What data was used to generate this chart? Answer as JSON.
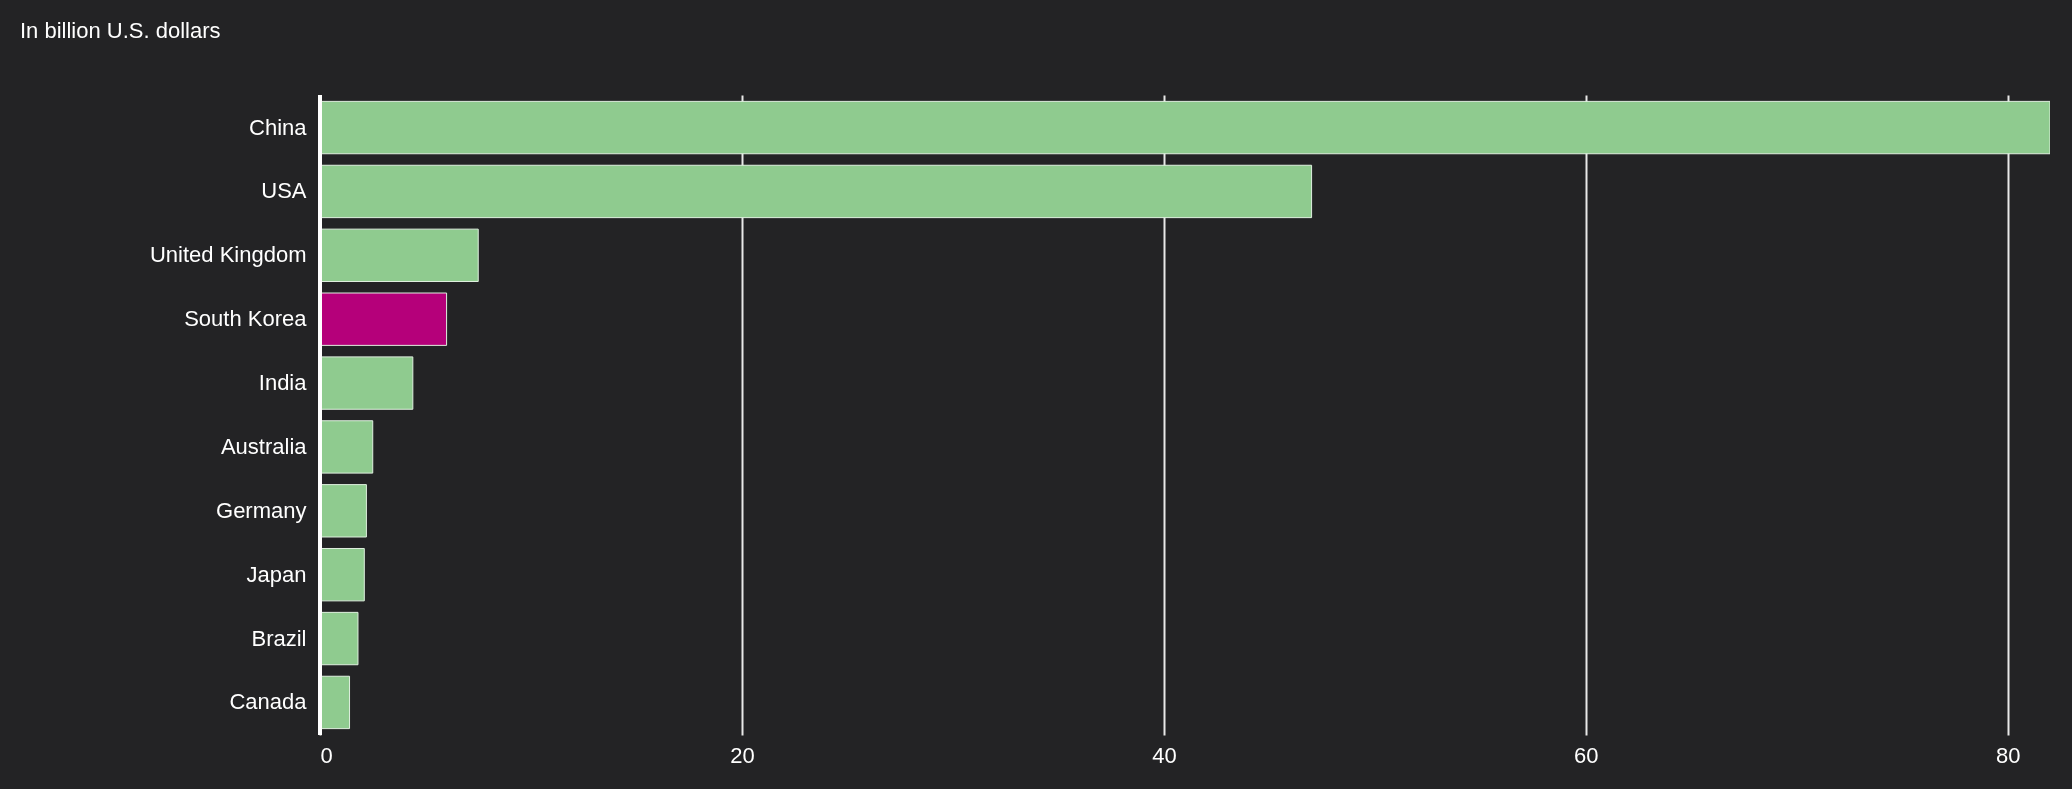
{
  "chart_data": {
    "type": "bar",
    "orientation": "horizontal",
    "title": "In billion U.S. dollars",
    "categories": [
      "China",
      "USA",
      "United Kingdom",
      "South Korea",
      "India",
      "Australia",
      "Germany",
      "Japan",
      "Brazil",
      "Canada"
    ],
    "values": [
      82,
      47,
      7.5,
      6.0,
      4.4,
      2.5,
      2.2,
      2.1,
      1.8,
      1.4
    ],
    "colors": [
      "#8fcb8f",
      "#8fcb8f",
      "#8fcb8f",
      "#b5007a",
      "#8fcb8f",
      "#8fcb8f",
      "#8fcb8f",
      "#8fcb8f",
      "#8fcb8f",
      "#8fcb8f"
    ],
    "xlim": [
      0,
      82
    ],
    "xticks": [
      0,
      20,
      40,
      60,
      80
    ],
    "grid": "x"
  }
}
